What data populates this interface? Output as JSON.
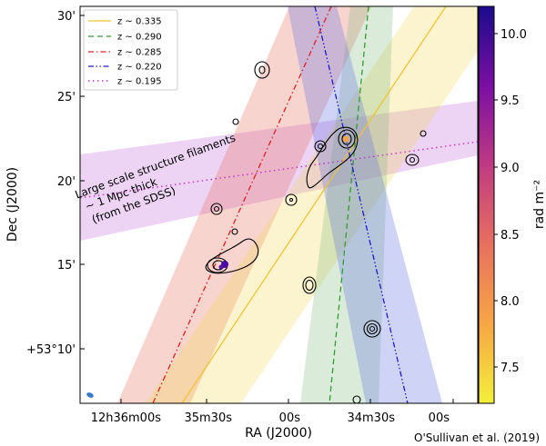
{
  "chart_data": {
    "type": "sky-map",
    "xlabel": "RA (J2000)",
    "ylabel": "Dec (J2000)",
    "x_ticks": [
      "12h36m00s",
      "35m30s",
      "00s",
      "34m30s",
      "00s"
    ],
    "y_ticks": [
      "30'",
      "25'",
      "20'",
      "15'",
      "+53°10'"
    ],
    "colorbar": {
      "label": "rad m⁻²",
      "range": [
        7.2,
        10.2
      ],
      "ticks": [
        "7.5",
        "8.0",
        "8.5",
        "9.0",
        "9.5",
        "10.0"
      ],
      "colormap": "plasma-reversed"
    },
    "series": [
      {
        "name": "z ~ 0.335",
        "color": "#f1c232",
        "style": "solid"
      },
      {
        "name": "z ~ 0.290",
        "color": "#2e9e2e",
        "style": "dashed"
      },
      {
        "name": "z ~ 0.285",
        "color": "#e02020",
        "style": "dashdot"
      },
      {
        "name": "z ~ 0.220",
        "color": "#1a1ad0",
        "style": "dashdotdot"
      },
      {
        "name": "z ~ 0.195",
        "color": "#c030c0",
        "style": "dotted"
      }
    ],
    "legend_position": "top-left",
    "annotation": [
      "Large scale structure filaments",
      "~ 1 Mpc thick",
      "(from the SDSS)"
    ],
    "credit": "O'Sullivan et al. (2019)"
  }
}
